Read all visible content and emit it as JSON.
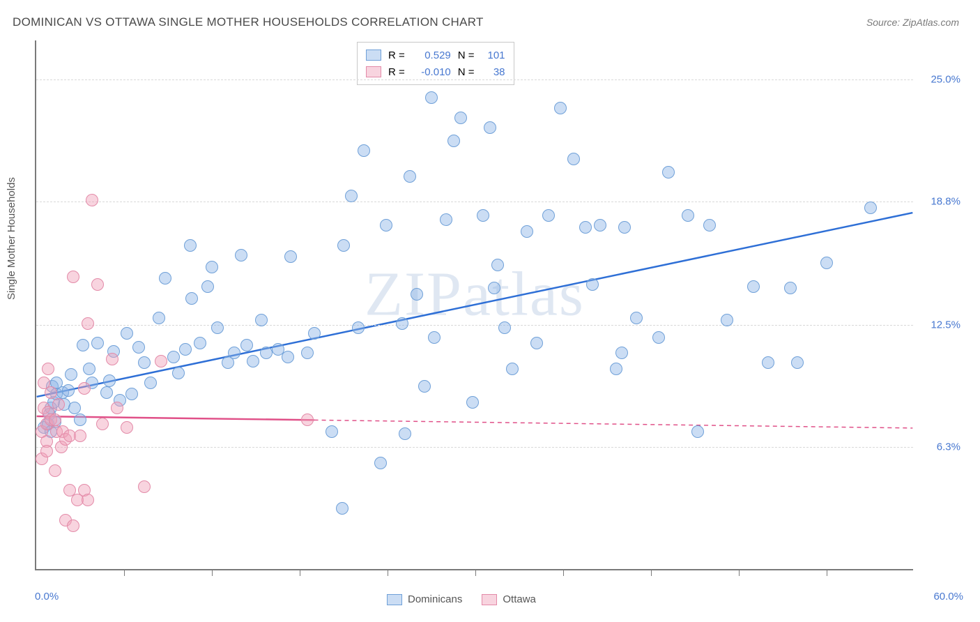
{
  "title": "DOMINICAN VS OTTAWA SINGLE MOTHER HOUSEHOLDS CORRELATION CHART",
  "source": "Source: ZipAtlas.com",
  "ylabel": "Single Mother Households",
  "watermark": "ZIPatlas",
  "chart": {
    "type": "scatter",
    "xlim": [
      0.0,
      60.0
    ],
    "ylim": [
      0.0,
      27.0
    ],
    "x_tick_step": 6.0,
    "y_gridlines": [
      6.3,
      12.5,
      18.8,
      25.0
    ],
    "y_tick_labels": [
      "6.3%",
      "12.5%",
      "18.8%",
      "25.0%"
    ],
    "x_left_label": "0.0%",
    "x_right_label": "60.0%",
    "background_color": "#ffffff",
    "grid_color": "#d8d8d8",
    "axis_color": "#7a7a7a",
    "marker_radius": 9,
    "series": [
      {
        "name": "Dominicans",
        "fill": "rgba(140,180,230,0.45)",
        "stroke": "#6fa0d8",
        "trend_color": "#2e6fd6",
        "trend_width": 2.5,
        "r": "0.529",
        "n": "101",
        "trend": {
          "y_at_x0": 8.8,
          "y_at_x60": 18.2,
          "solid_until_x": 60
        },
        "points": [
          [
            0.5,
            7.2
          ],
          [
            0.8,
            7.4
          ],
          [
            0.9,
            7.9
          ],
          [
            1.0,
            8.2
          ],
          [
            1.0,
            7.0
          ],
          [
            1.1,
            9.3
          ],
          [
            1.2,
            8.5
          ],
          [
            1.3,
            7.5
          ],
          [
            1.4,
            8.9
          ],
          [
            1.4,
            9.5
          ],
          [
            1.8,
            9.0
          ],
          [
            1.9,
            8.4
          ],
          [
            2.2,
            9.1
          ],
          [
            2.4,
            9.9
          ],
          [
            2.6,
            8.2
          ],
          [
            3.0,
            7.6
          ],
          [
            3.2,
            11.4
          ],
          [
            3.6,
            10.2
          ],
          [
            3.8,
            9.5
          ],
          [
            4.2,
            11.5
          ],
          [
            4.8,
            9.0
          ],
          [
            5.0,
            9.6
          ],
          [
            5.3,
            11.1
          ],
          [
            5.7,
            8.6
          ],
          [
            6.2,
            12.0
          ],
          [
            6.5,
            8.9
          ],
          [
            7.0,
            11.3
          ],
          [
            7.4,
            10.5
          ],
          [
            7.8,
            9.5
          ],
          [
            8.4,
            12.8
          ],
          [
            8.8,
            14.8
          ],
          [
            9.4,
            10.8
          ],
          [
            9.7,
            10.0
          ],
          [
            10.2,
            11.2
          ],
          [
            10.5,
            16.5
          ],
          [
            10.6,
            13.8
          ],
          [
            11.2,
            11.5
          ],
          [
            11.7,
            14.4
          ],
          [
            12.0,
            15.4
          ],
          [
            12.4,
            12.3
          ],
          [
            13.1,
            10.5
          ],
          [
            13.5,
            11.0
          ],
          [
            14.0,
            16.0
          ],
          [
            14.4,
            11.4
          ],
          [
            14.8,
            10.6
          ],
          [
            15.4,
            12.7
          ],
          [
            15.7,
            11.0
          ],
          [
            16.5,
            11.2
          ],
          [
            17.2,
            10.8
          ],
          [
            17.4,
            15.9
          ],
          [
            18.5,
            11.0
          ],
          [
            19.0,
            12.0
          ],
          [
            20.2,
            7.0
          ],
          [
            20.9,
            3.1
          ],
          [
            21.0,
            16.5
          ],
          [
            21.5,
            19.0
          ],
          [
            22.0,
            12.3
          ],
          [
            22.4,
            21.3
          ],
          [
            23.5,
            5.4
          ],
          [
            23.9,
            17.5
          ],
          [
            25.0,
            12.5
          ],
          [
            25.2,
            6.9
          ],
          [
            25.5,
            20.0
          ],
          [
            26.0,
            14.0
          ],
          [
            26.5,
            9.3
          ],
          [
            27.0,
            24.0
          ],
          [
            27.2,
            11.8
          ],
          [
            28.0,
            17.8
          ],
          [
            28.5,
            21.8
          ],
          [
            29.0,
            23.0
          ],
          [
            29.8,
            8.5
          ],
          [
            30.5,
            18.0
          ],
          [
            31.0,
            22.5
          ],
          [
            31.3,
            14.3
          ],
          [
            31.5,
            15.5
          ],
          [
            32.0,
            12.3
          ],
          [
            32.5,
            10.2
          ],
          [
            33.5,
            17.2
          ],
          [
            34.2,
            11.5
          ],
          [
            35.0,
            18.0
          ],
          [
            35.8,
            23.5
          ],
          [
            36.7,
            20.9
          ],
          [
            37.5,
            17.4
          ],
          [
            38.0,
            14.5
          ],
          [
            38.5,
            17.5
          ],
          [
            39.6,
            10.2
          ],
          [
            40.0,
            11.0
          ],
          [
            40.2,
            17.4
          ],
          [
            41.0,
            12.8
          ],
          [
            42.5,
            11.8
          ],
          [
            43.2,
            20.2
          ],
          [
            44.5,
            18.0
          ],
          [
            45.2,
            7.0
          ],
          [
            46.0,
            17.5
          ],
          [
            47.2,
            12.7
          ],
          [
            49.0,
            14.4
          ],
          [
            50.0,
            10.5
          ],
          [
            51.5,
            14.3
          ],
          [
            52.0,
            10.5
          ],
          [
            54.0,
            15.6
          ],
          [
            57.0,
            18.4
          ]
        ]
      },
      {
        "name": "Ottawa",
        "fill": "rgba(240,160,185,0.45)",
        "stroke": "#e38aa8",
        "trend_color": "#e05088",
        "trend_width": 2.5,
        "r": "-0.010",
        "n": "38",
        "trend": {
          "y_at_x0": 7.8,
          "y_at_x60": 7.2,
          "solid_until_x": 19
        },
        "points": [
          [
            0.4,
            5.6
          ],
          [
            0.4,
            7.0
          ],
          [
            0.5,
            9.5
          ],
          [
            0.5,
            8.2
          ],
          [
            0.7,
            6.5
          ],
          [
            0.7,
            6.0
          ],
          [
            0.7,
            7.4
          ],
          [
            0.8,
            8.0
          ],
          [
            0.8,
            10.2
          ],
          [
            1.0,
            7.6
          ],
          [
            1.0,
            9.0
          ],
          [
            1.3,
            5.0
          ],
          [
            1.3,
            7.6
          ],
          [
            1.4,
            7.0
          ],
          [
            1.5,
            8.4
          ],
          [
            1.7,
            6.2
          ],
          [
            1.8,
            7.0
          ],
          [
            2.0,
            6.6
          ],
          [
            2.0,
            2.5
          ],
          [
            2.3,
            4.0
          ],
          [
            2.3,
            6.8
          ],
          [
            2.5,
            2.2
          ],
          [
            2.5,
            14.9
          ],
          [
            2.8,
            3.5
          ],
          [
            3.0,
            6.8
          ],
          [
            3.3,
            4.0
          ],
          [
            3.3,
            9.2
          ],
          [
            3.5,
            3.5
          ],
          [
            3.5,
            12.5
          ],
          [
            3.8,
            18.8
          ],
          [
            4.2,
            14.5
          ],
          [
            4.5,
            7.4
          ],
          [
            5.2,
            10.7
          ],
          [
            5.5,
            8.2
          ],
          [
            6.2,
            7.2
          ],
          [
            7.4,
            4.2
          ],
          [
            8.5,
            10.6
          ],
          [
            18.5,
            7.6
          ]
        ]
      }
    ]
  },
  "legend_top": {
    "r_label": "R =",
    "n_label": "N ="
  },
  "legend_bottom": {
    "series1": "Dominicans",
    "series2": "Ottawa"
  }
}
